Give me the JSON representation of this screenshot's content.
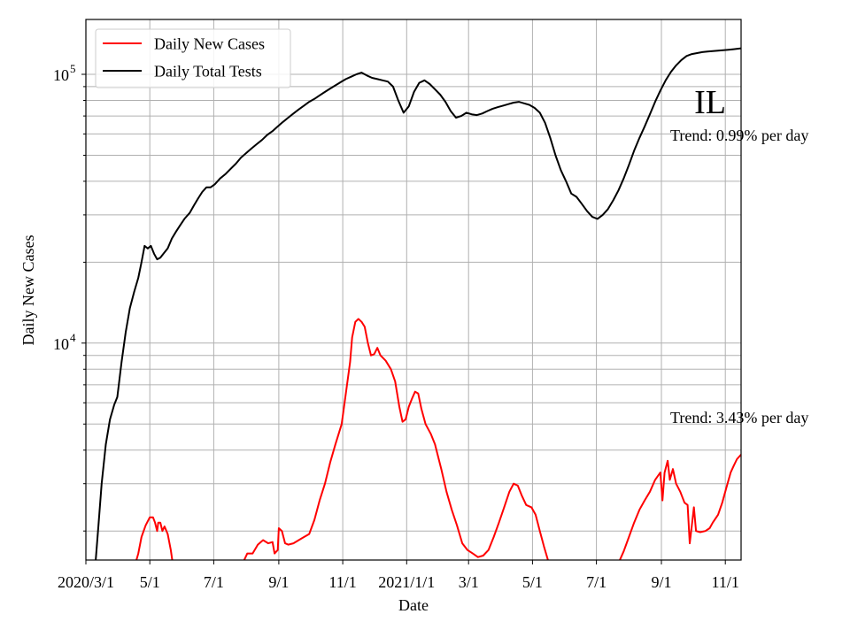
{
  "chart_data": {
    "type": "line",
    "title": "",
    "annotation_label": "IL",
    "xlabel": "Date",
    "ylabel": "Daily New Cases",
    "x_range": [
      "2020-03-01",
      "2021-11-16"
    ],
    "y_scale": "log",
    "ylim": [
      1560,
      160000
    ],
    "y_major_ticks": [
      {
        "value": 10000,
        "base": "10",
        "exp": "4"
      },
      {
        "value": 100000,
        "base": "10",
        "exp": "5"
      }
    ],
    "x_ticks": [
      {
        "date": "2020-03-01",
        "label": "2020/3/1"
      },
      {
        "date": "2020-05-01",
        "label": "5/1"
      },
      {
        "date": "2020-07-01",
        "label": "7/1"
      },
      {
        "date": "2020-09-01",
        "label": "9/1"
      },
      {
        "date": "2020-11-01",
        "label": "11/1"
      },
      {
        "date": "2021-01-01",
        "label": "2021/1/1"
      },
      {
        "date": "2021-03-01",
        "label": "3/1"
      },
      {
        "date": "2021-05-01",
        "label": "5/1"
      },
      {
        "date": "2021-07-01",
        "label": "7/1"
      },
      {
        "date": "2021-09-01",
        "label": "9/1"
      },
      {
        "date": "2021-11-01",
        "label": "11/1"
      }
    ],
    "grid": true,
    "legend_position": "top-left",
    "series": [
      {
        "name": "Daily New Cases",
        "color": "#ff0000",
        "trend_text": "Trend: 3.43% per day",
        "points": [
          [
            "2020-04-17",
            1500
          ],
          [
            "2020-04-20",
            1650
          ],
          [
            "2020-04-23",
            1900
          ],
          [
            "2020-04-27",
            2100
          ],
          [
            "2020-05-01",
            2250
          ],
          [
            "2020-05-04",
            2250
          ],
          [
            "2020-05-06",
            2150
          ],
          [
            "2020-05-08",
            2000
          ],
          [
            "2020-05-09",
            2150
          ],
          [
            "2020-05-11",
            2150
          ],
          [
            "2020-05-13",
            2000
          ],
          [
            "2020-05-15",
            2080
          ],
          [
            "2020-05-18",
            1950
          ],
          [
            "2020-05-21",
            1700
          ],
          [
            "2020-05-23",
            1500
          ],
          [
            "2020-07-28",
            1500
          ],
          [
            "2020-08-02",
            1650
          ],
          [
            "2020-08-07",
            1650
          ],
          [
            "2020-08-12",
            1780
          ],
          [
            "2020-08-17",
            1850
          ],
          [
            "2020-08-22",
            1800
          ],
          [
            "2020-08-26",
            1820
          ],
          [
            "2020-08-28",
            1650
          ],
          [
            "2020-08-31",
            1700
          ],
          [
            "2020-09-01",
            2050
          ],
          [
            "2020-09-04",
            2000
          ],
          [
            "2020-09-07",
            1800
          ],
          [
            "2020-09-10",
            1780
          ],
          [
            "2020-09-15",
            1800
          ],
          [
            "2020-09-20",
            1850
          ],
          [
            "2020-09-25",
            1900
          ],
          [
            "2020-09-30",
            1950
          ],
          [
            "2020-10-05",
            2200
          ],
          [
            "2020-10-10",
            2600
          ],
          [
            "2020-10-15",
            3000
          ],
          [
            "2020-10-20",
            3600
          ],
          [
            "2020-10-25",
            4200
          ],
          [
            "2020-10-31",
            5000
          ],
          [
            "2020-11-04",
            6500
          ],
          [
            "2020-11-08",
            8500
          ],
          [
            "2020-11-10",
            10500
          ],
          [
            "2020-11-13",
            12000
          ],
          [
            "2020-11-16",
            12300
          ],
          [
            "2020-11-19",
            12000
          ],
          [
            "2020-11-22",
            11500
          ],
          [
            "2020-11-25",
            10000
          ],
          [
            "2020-11-28",
            9000
          ],
          [
            "2020-12-01",
            9100
          ],
          [
            "2020-12-04",
            9600
          ],
          [
            "2020-12-07",
            9000
          ],
          [
            "2020-12-12",
            8600
          ],
          [
            "2020-12-17",
            8000
          ],
          [
            "2020-12-21",
            7200
          ],
          [
            "2020-12-25",
            5800
          ],
          [
            "2020-12-28",
            5100
          ],
          [
            "2020-12-31",
            5200
          ],
          [
            "2021-01-03",
            5800
          ],
          [
            "2021-01-06",
            6200
          ],
          [
            "2021-01-09",
            6600
          ],
          [
            "2021-01-12",
            6500
          ],
          [
            "2021-01-15",
            5700
          ],
          [
            "2021-01-19",
            5000
          ],
          [
            "2021-01-24",
            4600
          ],
          [
            "2021-01-28",
            4200
          ],
          [
            "2021-02-03",
            3400
          ],
          [
            "2021-02-08",
            2800
          ],
          [
            "2021-02-13",
            2400
          ],
          [
            "2021-02-18",
            2100
          ],
          [
            "2021-02-23",
            1800
          ],
          [
            "2021-02-28",
            1700
          ],
          [
            "2021-03-05",
            1650
          ],
          [
            "2021-03-10",
            1600
          ],
          [
            "2021-03-15",
            1620
          ],
          [
            "2021-03-20",
            1700
          ],
          [
            "2021-03-25",
            1900
          ],
          [
            "2021-03-30",
            2150
          ],
          [
            "2021-04-04",
            2450
          ],
          [
            "2021-04-09",
            2800
          ],
          [
            "2021-04-13",
            3000
          ],
          [
            "2021-04-17",
            2950
          ],
          [
            "2021-04-21",
            2700
          ],
          [
            "2021-04-25",
            2500
          ],
          [
            "2021-04-30",
            2450
          ],
          [
            "2021-05-04",
            2300
          ],
          [
            "2021-05-08",
            2000
          ],
          [
            "2021-05-12",
            1750
          ],
          [
            "2021-05-16",
            1550
          ],
          [
            "2021-07-23",
            1550
          ],
          [
            "2021-07-27",
            1680
          ],
          [
            "2021-08-01",
            1900
          ],
          [
            "2021-08-06",
            2150
          ],
          [
            "2021-08-11",
            2400
          ],
          [
            "2021-08-16",
            2600
          ],
          [
            "2021-08-21",
            2800
          ],
          [
            "2021-08-26",
            3100
          ],
          [
            "2021-08-31",
            3300
          ],
          [
            "2021-09-02",
            2600
          ],
          [
            "2021-09-04",
            3300
          ],
          [
            "2021-09-07",
            3650
          ],
          [
            "2021-09-09",
            3100
          ],
          [
            "2021-09-12",
            3400
          ],
          [
            "2021-09-15",
            3000
          ],
          [
            "2021-09-19",
            2800
          ],
          [
            "2021-09-23",
            2550
          ],
          [
            "2021-09-26",
            2500
          ],
          [
            "2021-09-28",
            1800
          ],
          [
            "2021-09-30",
            2100
          ],
          [
            "2021-10-02",
            2450
          ],
          [
            "2021-10-04",
            2000
          ],
          [
            "2021-10-08",
            1980
          ],
          [
            "2021-10-13",
            2000
          ],
          [
            "2021-10-17",
            2050
          ],
          [
            "2021-10-20",
            2150
          ],
          [
            "2021-10-25",
            2300
          ],
          [
            "2021-10-29",
            2550
          ],
          [
            "2021-11-02",
            2900
          ],
          [
            "2021-11-06",
            3300
          ],
          [
            "2021-11-09",
            3500
          ],
          [
            "2021-11-12",
            3700
          ],
          [
            "2021-11-16",
            3850
          ]
        ]
      },
      {
        "name": "Daily Total Tests",
        "color": "#000000",
        "trend_text": "Trend: 0.99% per day",
        "points": [
          [
            "2020-03-10",
            1500
          ],
          [
            "2020-03-13",
            2100
          ],
          [
            "2020-03-16",
            3000
          ],
          [
            "2020-03-20",
            4200
          ],
          [
            "2020-03-24",
            5200
          ],
          [
            "2020-03-28",
            5900
          ],
          [
            "2020-03-31",
            6300
          ],
          [
            "2020-04-04",
            8500
          ],
          [
            "2020-04-08",
            11000
          ],
          [
            "2020-04-12",
            13500
          ],
          [
            "2020-04-16",
            15500
          ],
          [
            "2020-04-20",
            17500
          ],
          [
            "2020-04-23",
            20000
          ],
          [
            "2020-04-26",
            23000
          ],
          [
            "2020-04-29",
            22500
          ],
          [
            "2020-05-02",
            23000
          ],
          [
            "2020-05-05",
            21500
          ],
          [
            "2020-05-08",
            20500
          ],
          [
            "2020-05-11",
            20800
          ],
          [
            "2020-05-14",
            21500
          ],
          [
            "2020-05-18",
            22500
          ],
          [
            "2020-05-22",
            24500
          ],
          [
            "2020-05-26",
            26000
          ],
          [
            "2020-05-30",
            27500
          ],
          [
            "2020-06-03",
            29000
          ],
          [
            "2020-06-08",
            30500
          ],
          [
            "2020-06-12",
            32500
          ],
          [
            "2020-06-16",
            34500
          ],
          [
            "2020-06-20",
            36500
          ],
          [
            "2020-06-24",
            38000
          ],
          [
            "2020-06-28",
            38000
          ],
          [
            "2020-07-02",
            39000
          ],
          [
            "2020-07-07",
            41000
          ],
          [
            "2020-07-12",
            42500
          ],
          [
            "2020-07-17",
            44500
          ],
          [
            "2020-07-22",
            46500
          ],
          [
            "2020-07-27",
            49000
          ],
          [
            "2020-08-01",
            51000
          ],
          [
            "2020-08-06",
            53000
          ],
          [
            "2020-08-11",
            55000
          ],
          [
            "2020-08-16",
            57000
          ],
          [
            "2020-08-21",
            59500
          ],
          [
            "2020-08-26",
            61500
          ],
          [
            "2020-08-31",
            64000
          ],
          [
            "2020-09-05",
            66500
          ],
          [
            "2020-09-10",
            69000
          ],
          [
            "2020-09-15",
            71500
          ],
          [
            "2020-09-20",
            74000
          ],
          [
            "2020-09-25",
            76500
          ],
          [
            "2020-09-30",
            79000
          ],
          [
            "2020-10-05",
            81000
          ],
          [
            "2020-10-10",
            83500
          ],
          [
            "2020-10-15",
            86000
          ],
          [
            "2020-10-20",
            88500
          ],
          [
            "2020-10-25",
            91000
          ],
          [
            "2020-10-30",
            93500
          ],
          [
            "2020-11-04",
            96000
          ],
          [
            "2020-11-09",
            98000
          ],
          [
            "2020-11-14",
            100000
          ],
          [
            "2020-11-19",
            101500
          ],
          [
            "2020-11-24",
            99000
          ],
          [
            "2020-11-29",
            97000
          ],
          [
            "2020-12-04",
            96000
          ],
          [
            "2020-12-09",
            95000
          ],
          [
            "2020-12-14",
            94000
          ],
          [
            "2020-12-19",
            90000
          ],
          [
            "2020-12-24",
            80000
          ],
          [
            "2020-12-29",
            72000
          ],
          [
            "2021-01-03",
            76000
          ],
          [
            "2021-01-08",
            86000
          ],
          [
            "2021-01-13",
            93000
          ],
          [
            "2021-01-18",
            95000
          ],
          [
            "2021-01-23",
            92000
          ],
          [
            "2021-01-28",
            88000
          ],
          [
            "2021-02-02",
            84000
          ],
          [
            "2021-02-07",
            79000
          ],
          [
            "2021-02-12",
            73000
          ],
          [
            "2021-02-17",
            69000
          ],
          [
            "2021-02-22",
            70000
          ],
          [
            "2021-02-27",
            72000
          ],
          [
            "2021-03-04",
            71000
          ],
          [
            "2021-03-09",
            70500
          ],
          [
            "2021-03-14",
            71500
          ],
          [
            "2021-03-19",
            73000
          ],
          [
            "2021-03-24",
            74500
          ],
          [
            "2021-03-29",
            75500
          ],
          [
            "2021-04-03",
            76500
          ],
          [
            "2021-04-08",
            77500
          ],
          [
            "2021-04-13",
            78500
          ],
          [
            "2021-04-18",
            79000
          ],
          [
            "2021-04-23",
            78000
          ],
          [
            "2021-04-28",
            77000
          ],
          [
            "2021-05-03",
            75000
          ],
          [
            "2021-05-08",
            72000
          ],
          [
            "2021-05-13",
            66000
          ],
          [
            "2021-05-18",
            58000
          ],
          [
            "2021-05-23",
            50000
          ],
          [
            "2021-05-28",
            44000
          ],
          [
            "2021-06-02",
            40000
          ],
          [
            "2021-06-07",
            36000
          ],
          [
            "2021-06-12",
            35000
          ],
          [
            "2021-06-17",
            33000
          ],
          [
            "2021-06-22",
            31000
          ],
          [
            "2021-06-27",
            29500
          ],
          [
            "2021-07-02",
            29000
          ],
          [
            "2021-07-07",
            30000
          ],
          [
            "2021-07-12",
            31500
          ],
          [
            "2021-07-17",
            34000
          ],
          [
            "2021-07-22",
            37000
          ],
          [
            "2021-07-27",
            41000
          ],
          [
            "2021-08-01",
            46000
          ],
          [
            "2021-08-06",
            52000
          ],
          [
            "2021-08-11",
            58000
          ],
          [
            "2021-08-16",
            64000
          ],
          [
            "2021-08-21",
            71000
          ],
          [
            "2021-08-26",
            79000
          ],
          [
            "2021-08-31",
            87000
          ],
          [
            "2021-09-05",
            95000
          ],
          [
            "2021-09-10",
            102000
          ],
          [
            "2021-09-15",
            108000
          ],
          [
            "2021-09-20",
            113000
          ],
          [
            "2021-09-25",
            117000
          ],
          [
            "2021-09-30",
            119000
          ],
          [
            "2021-10-05",
            120000
          ],
          [
            "2021-10-10",
            121000
          ],
          [
            "2021-10-15",
            121500
          ],
          [
            "2021-10-20",
            122000
          ],
          [
            "2021-10-25",
            122500
          ],
          [
            "2021-10-30",
            123000
          ],
          [
            "2021-11-04",
            123500
          ],
          [
            "2021-11-09",
            124000
          ],
          [
            "2021-11-16",
            125000
          ]
        ]
      }
    ]
  }
}
